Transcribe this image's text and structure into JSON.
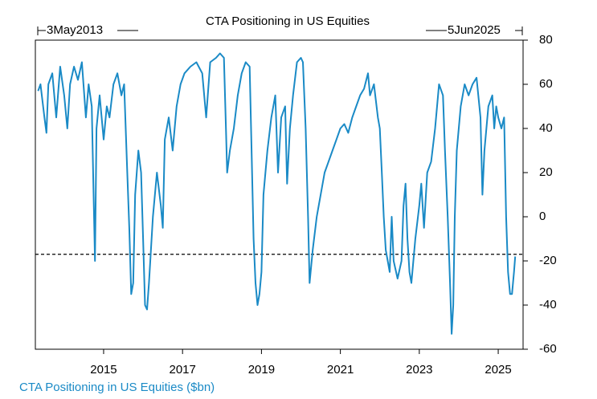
{
  "chart_data": {
    "type": "line",
    "title": "CTA Positioning in US Equities",
    "annotations": {
      "start": "3May2013",
      "end": "5Jun2025"
    },
    "xlim": [
      2013.27,
      2025.63
    ],
    "xticks": [
      2015,
      2017,
      2019,
      2021,
      2023,
      2025
    ],
    "ylim": [
      -60,
      80
    ],
    "yticks": [
      80,
      60,
      40,
      20,
      0,
      -20,
      -40,
      -60
    ],
    "hline": -17,
    "x": [
      2013.34,
      2013.4,
      2013.5,
      2013.55,
      2013.6,
      2013.7,
      2013.8,
      2013.9,
      2014.0,
      2014.08,
      2014.15,
      2014.25,
      2014.35,
      2014.45,
      2014.55,
      2014.62,
      2014.7,
      2014.78,
      2014.82,
      2014.9,
      2015.0,
      2015.08,
      2015.15,
      2015.25,
      2015.35,
      2015.45,
      2015.52,
      2015.6,
      2015.65,
      2015.7,
      2015.75,
      2015.8,
      2015.88,
      2015.95,
      2016.0,
      2016.05,
      2016.1,
      2016.15,
      2016.25,
      2016.35,
      2016.45,
      2016.5,
      2016.55,
      2016.65,
      2016.75,
      2016.85,
      2016.95,
      2017.05,
      2017.2,
      2017.35,
      2017.5,
      2017.6,
      2017.7,
      2017.85,
      2017.95,
      2018.05,
      2018.1,
      2018.13,
      2018.2,
      2018.3,
      2018.4,
      2018.5,
      2018.6,
      2018.7,
      2018.75,
      2018.8,
      2018.85,
      2018.9,
      2018.95,
      2019.0,
      2019.05,
      2019.15,
      2019.25,
      2019.35,
      2019.42,
      2019.5,
      2019.6,
      2019.65,
      2019.72,
      2019.8,
      2019.9,
      2020.0,
      2020.05,
      2020.12,
      2020.18,
      2020.22,
      2020.3,
      2020.4,
      2020.5,
      2020.6,
      2020.7,
      2020.8,
      2020.9,
      2021.0,
      2021.1,
      2021.2,
      2021.3,
      2021.4,
      2021.5,
      2021.6,
      2021.7,
      2021.75,
      2021.85,
      2021.95,
      2022.0,
      2022.05,
      2022.1,
      2022.15,
      2022.25,
      2022.3,
      2022.35,
      2022.45,
      2022.55,
      2022.6,
      2022.65,
      2022.7,
      2022.75,
      2022.8,
      2022.9,
      2023.0,
      2023.05,
      2023.12,
      2023.2,
      2023.3,
      2023.4,
      2023.5,
      2023.6,
      2023.65,
      2023.72,
      2023.78,
      2023.82,
      2023.86,
      2023.9,
      2023.95,
      2024.05,
      2024.15,
      2024.25,
      2024.35,
      2024.45,
      2024.55,
      2024.6,
      2024.65,
      2024.75,
      2024.85,
      2024.9,
      2024.95,
      2025.0,
      2025.08,
      2025.15,
      2025.2,
      2025.25,
      2025.3,
      2025.35,
      2025.4,
      2025.43
    ],
    "series": [
      {
        "name": "CTA Positioning in US Equities ($bn)",
        "color": "#1a8ac6",
        "values": [
          57,
          60,
          45,
          38,
          60,
          65,
          45,
          68,
          55,
          40,
          60,
          68,
          62,
          70,
          45,
          60,
          50,
          -20,
          40,
          55,
          35,
          50,
          45,
          60,
          65,
          55,
          60,
          20,
          -5,
          -35,
          -30,
          10,
          30,
          20,
          -10,
          -40,
          -42,
          -30,
          0,
          20,
          5,
          -5,
          35,
          45,
          30,
          50,
          60,
          65,
          68,
          70,
          65,
          45,
          70,
          72,
          74,
          72,
          40,
          20,
          30,
          40,
          55,
          65,
          70,
          68,
          30,
          -10,
          -30,
          -40,
          -35,
          -25,
          10,
          30,
          45,
          55,
          20,
          45,
          50,
          15,
          40,
          55,
          70,
          72,
          70,
          40,
          0,
          -30,
          -15,
          0,
          10,
          20,
          25,
          30,
          35,
          40,
          42,
          38,
          45,
          50,
          55,
          58,
          65,
          55,
          60,
          45,
          40,
          20,
          0,
          -15,
          -25,
          0,
          -20,
          -28,
          -20,
          5,
          15,
          -10,
          -25,
          -30,
          -10,
          5,
          15,
          -5,
          20,
          25,
          40,
          60,
          55,
          30,
          0,
          -30,
          -53,
          -40,
          0,
          30,
          50,
          60,
          55,
          60,
          63,
          45,
          10,
          30,
          50,
          55,
          40,
          50,
          45,
          40,
          45,
          0,
          -25,
          -35,
          -35,
          -25,
          -18
        ]
      }
    ]
  }
}
